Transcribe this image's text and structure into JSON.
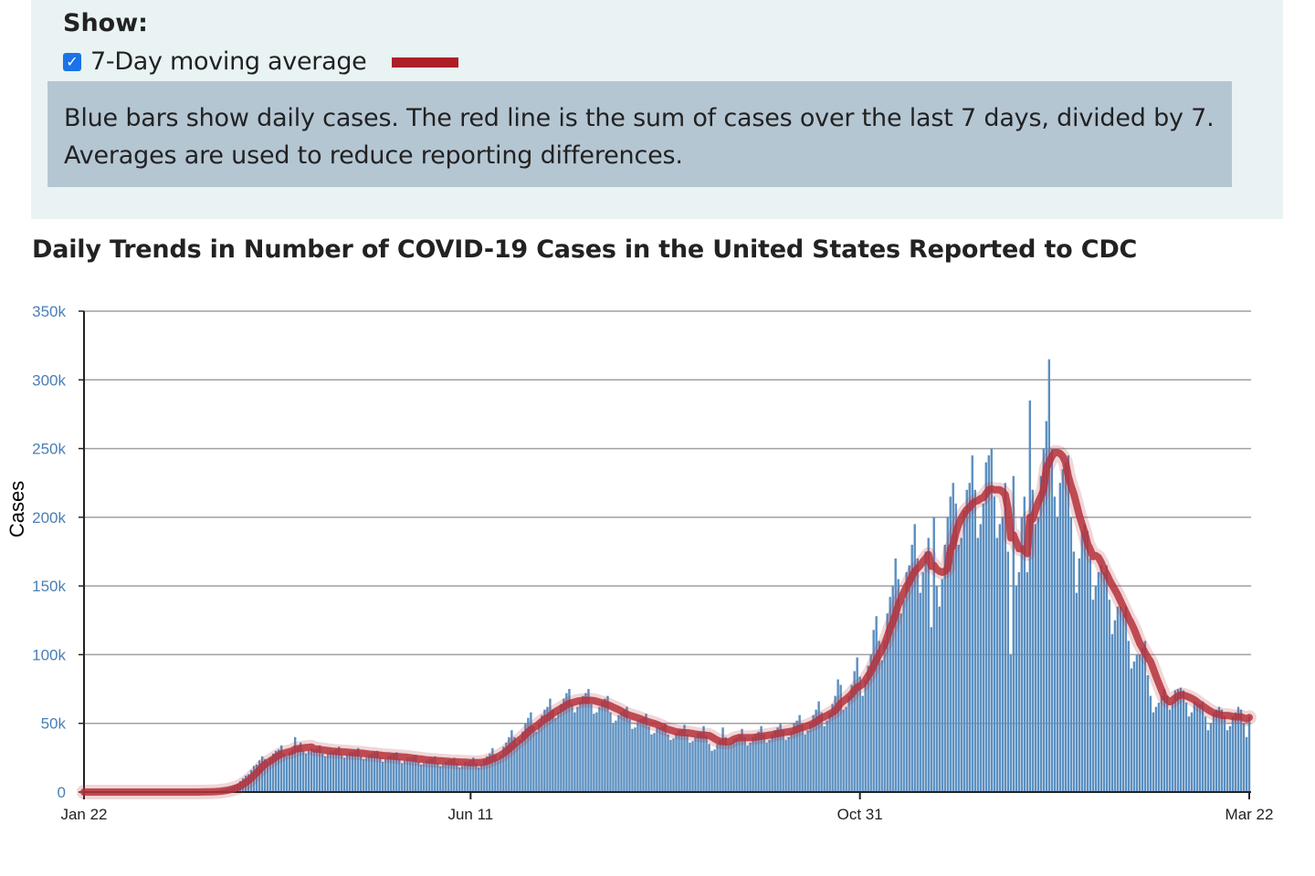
{
  "controls": {
    "show_label": "Show:",
    "moving_average_label": "7-Day moving average",
    "moving_average_checked": true,
    "note_line1": "Blue bars show daily cases. The red line is the sum of cases over the last 7 days, divided by 7.",
    "note_line2": "Averages are used to reduce reporting differences."
  },
  "chart_data": {
    "type": "bar",
    "title": "Daily Trends in Number of COVID-19 Cases in the United States Reported to CDC",
    "ylabel": "Cases",
    "xlabel": "",
    "ylim": [
      0,
      350000
    ],
    "y_ticks": [
      "0",
      "50k",
      "100k",
      "150k",
      "200k",
      "250k",
      "300k",
      "350k"
    ],
    "x_ticks": [
      "Jan 22",
      "Jun 11",
      "Oct 31",
      "Mar 22"
    ],
    "grid": true,
    "bar_color": "#5b8fc0",
    "line_color": "#b5313b",
    "overlay": "7-Day moving average",
    "daily_cases_thousands": [
      0,
      0,
      0,
      0,
      0,
      0,
      0,
      0,
      0,
      0,
      0,
      0,
      0,
      0,
      0,
      0,
      0,
      0,
      0,
      0,
      0,
      0,
      0,
      0,
      0,
      0,
      0,
      0,
      0,
      0,
      0,
      0,
      0,
      0,
      0,
      0,
      0,
      0,
      0,
      0,
      0,
      0,
      0.1,
      0.2,
      0.3,
      0.3,
      0.4,
      0.5,
      0.7,
      1,
      1.4,
      2,
      2.5,
      3,
      4,
      5,
      6,
      8,
      10,
      12,
      13,
      16,
      19,
      20,
      23,
      26,
      24,
      22,
      25,
      28,
      30,
      31,
      34,
      28,
      26,
      29,
      31,
      40,
      33,
      36,
      30,
      28,
      30,
      32,
      31,
      32,
      34,
      28,
      26,
      28,
      30,
      30,
      31,
      33,
      27,
      25,
      27,
      29,
      29,
      30,
      32,
      26,
      24,
      25,
      27,
      28,
      29,
      30,
      25,
      22,
      24,
      26,
      27,
      28,
      29,
      24,
      21,
      23,
      25,
      25,
      26,
      27,
      22,
      20,
      21,
      23,
      24,
      25,
      26,
      21,
      19,
      20,
      22,
      23,
      24,
      25,
      21,
      18,
      19,
      22,
      22,
      23,
      25,
      21,
      18,
      20,
      24,
      26,
      28,
      32,
      27,
      24,
      27,
      33,
      36,
      40,
      45,
      40,
      35,
      38,
      44,
      50,
      54,
      58,
      48,
      44,
      50,
      56,
      60,
      62,
      68,
      60,
      54,
      58,
      64,
      68,
      72,
      75,
      64,
      58,
      62,
      66,
      70,
      72,
      75,
      64,
      57,
      58,
      62,
      66,
      68,
      70,
      58,
      50,
      52,
      56,
      58,
      60,
      62,
      53,
      46,
      47,
      52,
      53,
      54,
      57,
      48,
      42,
      43,
      47,
      47,
      48,
      50,
      42,
      38,
      39,
      43,
      45,
      46,
      49,
      42,
      36,
      37,
      40,
      43,
      44,
      48,
      41,
      35,
      30,
      31,
      35,
      38,
      47,
      40,
      34,
      36,
      39,
      40,
      42,
      46,
      40,
      34,
      36,
      40,
      42,
      44,
      48,
      42,
      36,
      38,
      42,
      45,
      47,
      50,
      45,
      38,
      40,
      44,
      50,
      52,
      56,
      49,
      42,
      45,
      50,
      56,
      60,
      66,
      58,
      48,
      52,
      58,
      64,
      70,
      82,
      78,
      60,
      62,
      70,
      78,
      88,
      98,
      84,
      70,
      82,
      92,
      100,
      118,
      128,
      110,
      96,
      110,
      130,
      142,
      150,
      170,
      155,
      130,
      140,
      160,
      165,
      180,
      195,
      170,
      145,
      160,
      175,
      185,
      120,
      200,
      150,
      135,
      155,
      180,
      200,
      215,
      225,
      210,
      180,
      185,
      205,
      220,
      225,
      245,
      220,
      185,
      195,
      210,
      240,
      245,
      250,
      215,
      185,
      195,
      200,
      225,
      175,
      100,
      230,
      150,
      160,
      200,
      215,
      160,
      285,
      220,
      195,
      200,
      230,
      250,
      270,
      315,
      250,
      215,
      200,
      225,
      235,
      240,
      245,
      200,
      175,
      145,
      170,
      190,
      195,
      190,
      170,
      140,
      150,
      160,
      165,
      160,
      165,
      140,
      115,
      125,
      135,
      135,
      130,
      135,
      110,
      90,
      95,
      100,
      100,
      105,
      110,
      85,
      70,
      58,
      62,
      65,
      70,
      75,
      70,
      60,
      65,
      74,
      75,
      76,
      74,
      65,
      55,
      58,
      66,
      65,
      64,
      66,
      55,
      45,
      50,
      58,
      60,
      62,
      60,
      55,
      45,
      48,
      55,
      58,
      62,
      60,
      50,
      40,
      55
    ]
  }
}
